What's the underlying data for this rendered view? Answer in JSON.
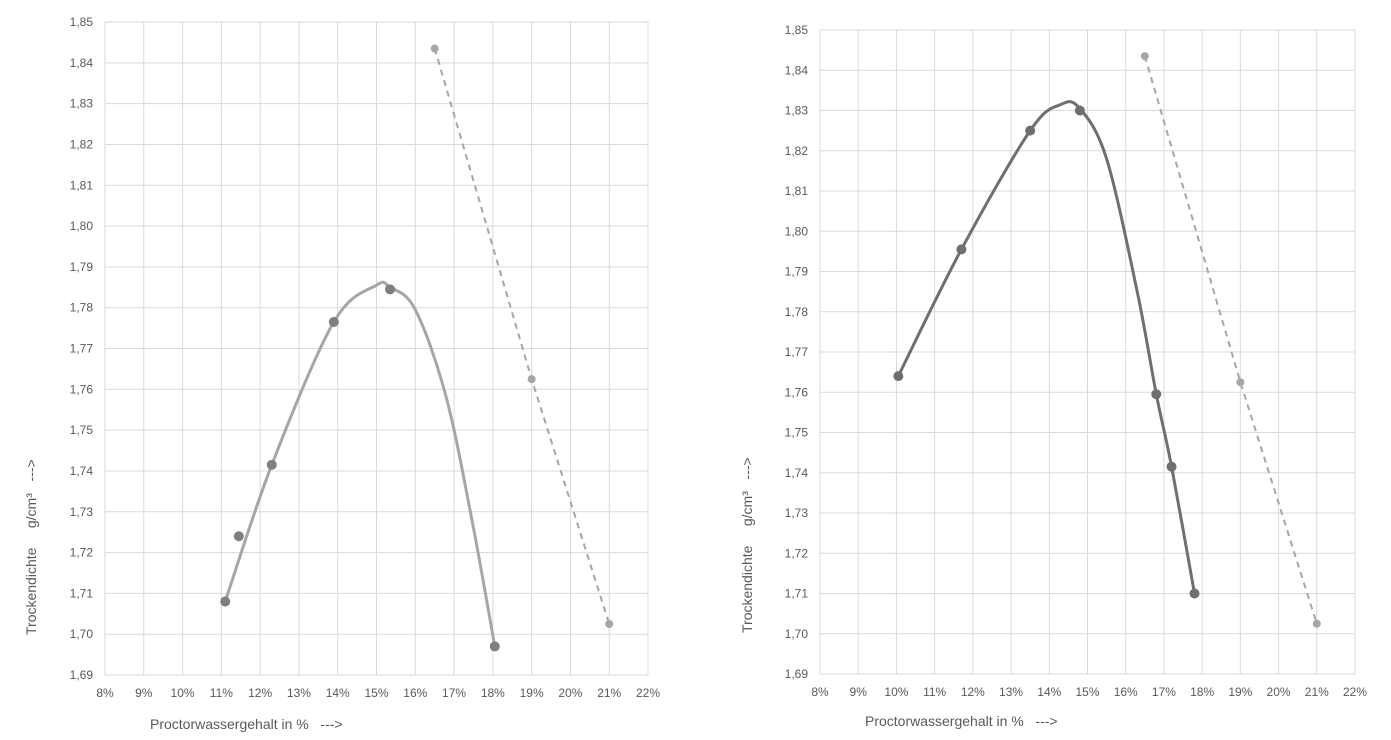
{
  "chart_data": [
    {
      "type": "scatter",
      "xlabel": "Proctorwassergehalt in %   --->",
      "ylabel": "Trockendichte     g/cm³   --->",
      "xlim": [
        8,
        22
      ],
      "ylim": [
        1.69,
        1.85
      ],
      "x_tick_labels": [
        "8%",
        "9%",
        "10%",
        "11%",
        "12%",
        "13%",
        "14%",
        "15%",
        "16%",
        "17%",
        "18%",
        "19%",
        "20%",
        "21%",
        "22%"
      ],
      "y_tick_labels": [
        "1,69",
        "1,70",
        "1,71",
        "1,72",
        "1,73",
        "1,74",
        "1,75",
        "1,76",
        "1,77",
        "1,78",
        "1,79",
        "1,80",
        "1,81",
        "1,82",
        "1,83",
        "1,84",
        "1,85"
      ],
      "grid": true,
      "series": [
        {
          "style": "points-with-smooth-curve",
          "color": "#a6a6a6",
          "marker_color": "#7f7f7f",
          "points": [
            {
              "x": 11.1,
              "y": 1.708
            },
            {
              "x": 11.45,
              "y": 1.724
            },
            {
              "x": 12.3,
              "y": 1.7415
            },
            {
              "x": 13.9,
              "y": 1.7765
            },
            {
              "x": 15.35,
              "y": 1.7845
            },
            {
              "x": 18.05,
              "y": 1.697
            }
          ],
          "curve": [
            {
              "x": 11.1,
              "y": 1.708
            },
            {
              "x": 12.3,
              "y": 1.7415
            },
            {
              "x": 13.9,
              "y": 1.7765
            },
            {
              "x": 15.0,
              "y": 1.7855
            },
            {
              "x": 15.35,
              "y": 1.785
            },
            {
              "x": 16.0,
              "y": 1.7795
            },
            {
              "x": 16.8,
              "y": 1.758
            },
            {
              "x": 17.5,
              "y": 1.726
            },
            {
              "x": 18.05,
              "y": 1.697
            }
          ]
        },
        {
          "style": "dashed-line",
          "color": "#a6a6a6",
          "marker_color": "#a6a6a6",
          "points": [
            {
              "x": 16.5,
              "y": 1.8435
            },
            {
              "x": 19.0,
              "y": 1.7625
            },
            {
              "x": 21.0,
              "y": 1.7025
            }
          ]
        }
      ]
    },
    {
      "type": "scatter",
      "xlabel": "Proctorwassergehalt in %   --->",
      "ylabel": "Trockendichte     g/cm³   --->",
      "xlim": [
        8,
        22
      ],
      "ylim": [
        1.69,
        1.85
      ],
      "x_tick_labels": [
        "8%",
        "9%",
        "10%",
        "11%",
        "12%",
        "13%",
        "14%",
        "15%",
        "16%",
        "17%",
        "18%",
        "19%",
        "20%",
        "21%",
        "22%"
      ],
      "y_tick_labels": [
        "1,69",
        "1,70",
        "1,71",
        "1,72",
        "1,73",
        "1,74",
        "1,75",
        "1,76",
        "1,77",
        "1,78",
        "1,79",
        "1,80",
        "1,81",
        "1,82",
        "1,83",
        "1,84",
        "1,85"
      ],
      "grid": true,
      "series": [
        {
          "style": "points-with-smooth-curve",
          "color": "#6f6f6f",
          "marker_color": "#6f6f6f",
          "points": [
            {
              "x": 10.05,
              "y": 1.764
            },
            {
              "x": 11.7,
              "y": 1.7955
            },
            {
              "x": 13.5,
              "y": 1.825
            },
            {
              "x": 14.8,
              "y": 1.83
            },
            {
              "x": 16.8,
              "y": 1.7595
            },
            {
              "x": 17.2,
              "y": 1.7415
            },
            {
              "x": 17.8,
              "y": 1.71
            }
          ],
          "curve": [
            {
              "x": 10.05,
              "y": 1.764
            },
            {
              "x": 11.7,
              "y": 1.7955
            },
            {
              "x": 13.5,
              "y": 1.825
            },
            {
              "x": 14.3,
              "y": 1.8315
            },
            {
              "x": 14.8,
              "y": 1.8305
            },
            {
              "x": 15.5,
              "y": 1.818
            },
            {
              "x": 16.3,
              "y": 1.785
            },
            {
              "x": 16.8,
              "y": 1.7595
            },
            {
              "x": 17.2,
              "y": 1.7415
            },
            {
              "x": 17.8,
              "y": 1.71
            }
          ]
        },
        {
          "style": "dashed-line",
          "color": "#a6a6a6",
          "marker_color": "#a6a6a6",
          "points": [
            {
              "x": 16.5,
              "y": 1.8435
            },
            {
              "x": 19.0,
              "y": 1.7625
            },
            {
              "x": 21.0,
              "y": 1.7025
            }
          ]
        }
      ]
    }
  ]
}
